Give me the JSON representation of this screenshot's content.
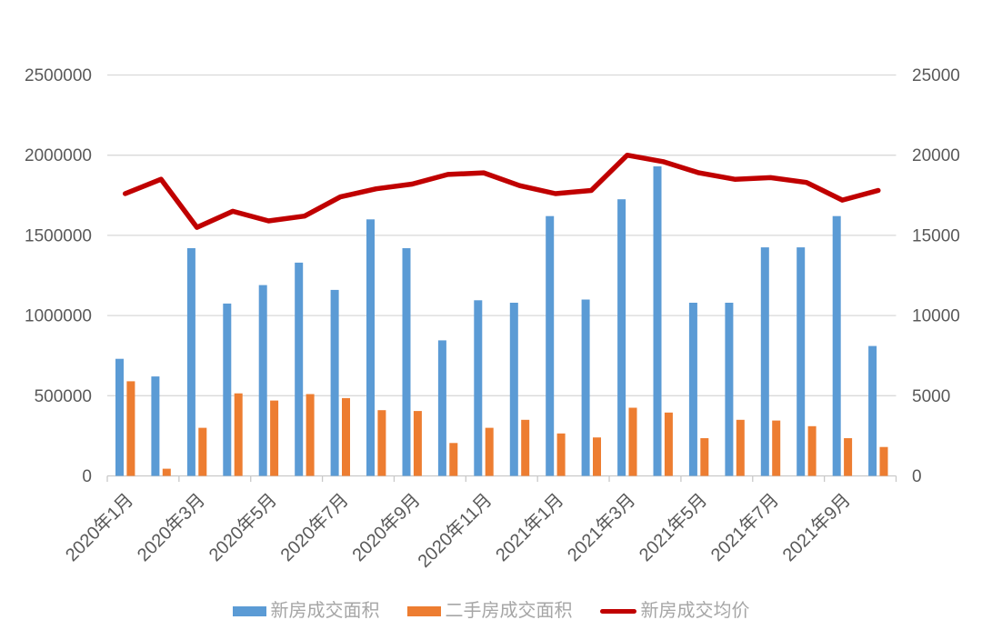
{
  "page": {
    "background": "#FFFFFF"
  },
  "chart_data": {
    "type": "combo-bar-line",
    "title": "",
    "categories": [
      "2020年1月",
      "2020年2月",
      "2020年3月",
      "2020年4月",
      "2020年5月",
      "2020年6月",
      "2020年7月",
      "2020年8月",
      "2020年9月",
      "2020年10月",
      "2020年11月",
      "2020年12月",
      "2021年1月",
      "2021年2月",
      "2021年3月",
      "2021年4月",
      "2021年5月",
      "2021年6月",
      "2021年7月",
      "2021年8月",
      "2021年9月",
      "2021年10月"
    ],
    "x_axis": {
      "labels_shown": [
        "2020年1月",
        "2020年3月",
        "2020年5月",
        "2020年7月",
        "2020年9月",
        "2020年11月",
        "2021年1月",
        "2021年3月",
        "2021年5月",
        "2021年7月",
        "2021年9月"
      ],
      "label_every_n_months": 2,
      "label_rotation_deg": 45
    },
    "left_axis": {
      "min": 0,
      "max": 2500000,
      "step": 500000,
      "ticks": [
        "0",
        "500000",
        "1000000",
        "1500000",
        "2000000",
        "2500000"
      ]
    },
    "right_axis": {
      "min": 0,
      "max": 25000,
      "step": 5000,
      "ticks": [
        "0",
        "5000",
        "10000",
        "15000",
        "20000",
        "25000"
      ]
    },
    "series": [
      {
        "key": "new-home-area",
        "name": "新房成交面积",
        "type": "bar",
        "axis": "left",
        "color": "#5B9BD5",
        "values": [
          730000,
          620000,
          1420000,
          1075000,
          1190000,
          1330000,
          1160000,
          1600000,
          1420000,
          845000,
          1095000,
          1080000,
          1620000,
          1100000,
          1725000,
          1930000,
          1080000,
          1080000,
          1425000,
          1425000,
          1620000,
          810000
        ]
      },
      {
        "key": "resale-area",
        "name": "二手房成交面积",
        "type": "bar",
        "axis": "left",
        "color": "#ED7D31",
        "values": [
          590000,
          45000,
          300000,
          515000,
          470000,
          510000,
          485000,
          410000,
          405000,
          205000,
          300000,
          350000,
          265000,
          240000,
          425000,
          395000,
          235000,
          350000,
          345000,
          310000,
          235000,
          180000
        ]
      },
      {
        "key": "new-home-price",
        "name": "新房成交均价",
        "type": "line",
        "axis": "right",
        "color": "#C00000",
        "values": [
          17600,
          18500,
          15500,
          16500,
          15900,
          16200,
          17400,
          17900,
          18200,
          18800,
          18900,
          18100,
          17600,
          17800,
          20000,
          19600,
          18900,
          18500,
          18600,
          18300,
          17200,
          17800
        ]
      }
    ],
    "legend": {
      "position": "bottom",
      "items": [
        "新房成交面积",
        "二手房成交面积",
        "新房成交均价"
      ]
    },
    "grid": true,
    "styles": {
      "grid_color": "#D9D9D9",
      "axis_line_color": "#C9C9C9",
      "axis_label_color": "#595959",
      "legend_text_color": "#A6A6A6"
    }
  }
}
